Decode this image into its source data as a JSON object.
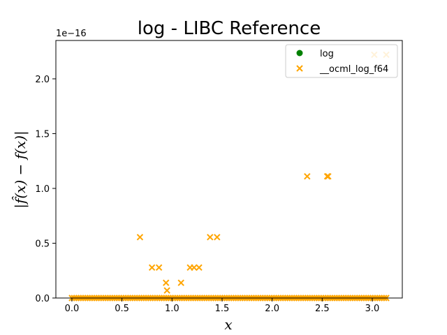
{
  "chart_data": {
    "type": "scatter",
    "title": "log - LIBC Reference",
    "xlabel": "x",
    "ylabel": "|f̂(x) − f(x)|",
    "y_scale_note": "1e−16",
    "xlim": [
      -0.16,
      3.3
    ],
    "ylim": [
      0,
      2.35
    ],
    "x_ticks": [
      0.0,
      0.5,
      1.0,
      1.5,
      2.0,
      2.5,
      3.0
    ],
    "x_tick_labels": [
      "0.0",
      "0.5",
      "1.0",
      "1.5",
      "2.0",
      "2.5",
      "3.0"
    ],
    "y_ticks": [
      0.0,
      0.5,
      1.0,
      1.5,
      2.0
    ],
    "y_tick_labels": [
      "0.0",
      "0.5",
      "1.0",
      "1.5",
      "2.0"
    ],
    "legend_position": "top-right",
    "baseline_x_range": [
      0.0,
      3.14
    ],
    "series": [
      {
        "name": "log",
        "marker": "circle",
        "color": "#008000",
        "points": []
      },
      {
        "name": "__ocml_log_f64",
        "marker": "x",
        "color": "#FFA500",
        "points": [
          [
            0.68,
            0.555
          ],
          [
            0.8,
            0.278
          ],
          [
            0.87,
            0.278
          ],
          [
            0.94,
            0.139
          ],
          [
            0.95,
            0.069
          ],
          [
            1.09,
            0.139
          ],
          [
            1.18,
            0.278
          ],
          [
            1.22,
            0.278
          ],
          [
            1.27,
            0.278
          ],
          [
            1.38,
            0.555
          ],
          [
            1.45,
            0.555
          ],
          [
            2.35,
            1.11
          ],
          [
            2.55,
            1.11
          ],
          [
            2.56,
            1.11
          ],
          [
            3.02,
            2.22
          ],
          [
            3.14,
            2.22
          ]
        ]
      }
    ]
  }
}
